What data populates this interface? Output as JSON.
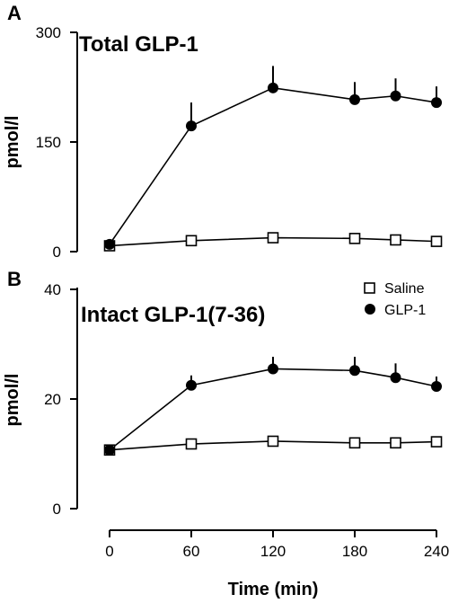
{
  "chart_data": [
    {
      "panel_label": "A",
      "type": "line",
      "title": "Total GLP-1",
      "xlabel": "",
      "ylabel": "pmol/l",
      "ylim": [
        0,
        300
      ],
      "yticks": [
        0,
        150,
        300
      ],
      "xlim": [
        0,
        240
      ],
      "series": [
        {
          "name": "Saline",
          "marker": "open-square",
          "x": [
            0,
            60,
            120,
            180,
            210,
            240
          ],
          "values": [
            8,
            15,
            19,
            18,
            16,
            14
          ],
          "error": [
            0,
            0,
            0,
            0,
            0,
            0
          ]
        },
        {
          "name": "GLP-1",
          "marker": "filled-circle",
          "x": [
            0,
            60,
            120,
            180,
            210,
            240
          ],
          "values": [
            10,
            172,
            224,
            208,
            213,
            204
          ],
          "error": [
            0,
            32,
            30,
            24,
            24,
            22
          ]
        }
      ]
    },
    {
      "panel_label": "B",
      "type": "line",
      "title": "Intact GLP-1(7-36)",
      "xlabel": "Time (min)",
      "ylabel": "pmol/l",
      "ylim": [
        0,
        40
      ],
      "yticks": [
        0,
        20,
        40
      ],
      "xlim": [
        0,
        240
      ],
      "xticks": [
        0,
        60,
        120,
        180,
        240
      ],
      "legend": "top-right",
      "series": [
        {
          "name": "Saline",
          "marker": "open-square",
          "x": [
            0,
            60,
            120,
            180,
            210,
            240
          ],
          "values": [
            10.7,
            11.8,
            12.3,
            12.0,
            12.0,
            12.2
          ],
          "error": [
            0,
            0.6,
            0.8,
            0.6,
            0,
            0
          ]
        },
        {
          "name": "GLP-1",
          "marker": "filled-circle",
          "x": [
            0,
            60,
            120,
            180,
            210,
            240
          ],
          "values": [
            10.7,
            22.5,
            25.5,
            25.2,
            23.9,
            22.3
          ],
          "error": [
            0,
            1.8,
            2.2,
            2.5,
            2.6,
            1.8
          ]
        }
      ]
    }
  ]
}
